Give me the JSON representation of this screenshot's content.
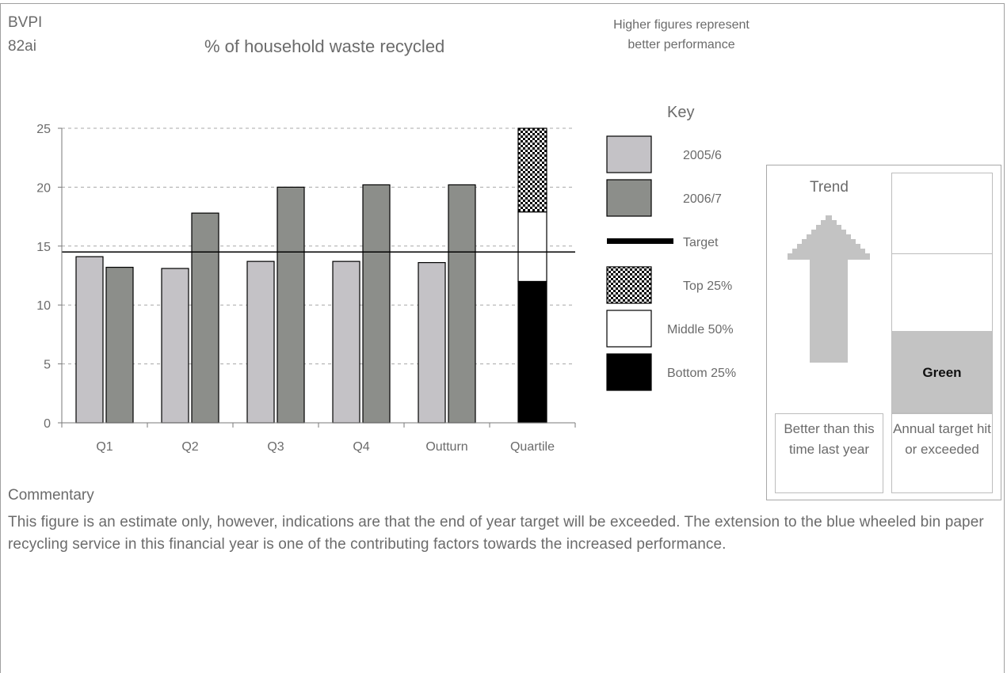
{
  "header": {
    "code_line1": "BVPI",
    "code_line2": "82ai",
    "note": "Higher figures represent better performance"
  },
  "chart_data": {
    "type": "bar",
    "title": "% of household waste recycled",
    "categories": [
      "Q1",
      "Q2",
      "Q3",
      "Q4",
      "Outturn",
      "Quartile"
    ],
    "series": [
      {
        "name": "2005/6",
        "values": [
          14.1,
          13.1,
          13.7,
          13.7,
          13.6,
          null
        ],
        "color": "#c4c2c6"
      },
      {
        "name": "2006/7",
        "values": [
          13.2,
          17.8,
          20.0,
          20.2,
          20.2,
          null
        ],
        "color": "#8c8e8a"
      }
    ],
    "target": {
      "name": "Target",
      "value": 14.5,
      "color": "#000000"
    },
    "quartile": [
      {
        "name": "Bottom 25%",
        "from": 0,
        "to": 12.0,
        "fill": "#000000"
      },
      {
        "name": "Middle 50%",
        "from": 12.0,
        "to": 17.9,
        "fill": "#ffffff"
      },
      {
        "name": "Top 25%",
        "from": 17.9,
        "to": 25.0,
        "fill": "checker"
      }
    ],
    "y_ticks": [
      0,
      5,
      10,
      15,
      20,
      25
    ],
    "ylim": [
      0,
      25
    ],
    "grid": true,
    "legend": {
      "title": "Key",
      "placement": "right",
      "items": [
        "2005/6",
        "2006/7",
        "Target",
        "Top 25%",
        "Middle 50%",
        "Bottom 25%"
      ]
    }
  },
  "trend": {
    "title": "Trend",
    "direction": "up",
    "icon": "arrow-up-icon",
    "caption": "Better than this time last year"
  },
  "annual_target": {
    "status": "Green",
    "level": 0.34,
    "color": "#c3c3c3",
    "caption": "Annual target hit or exceeded"
  },
  "commentary": {
    "heading": "Commentary",
    "text": "This figure is an estimate only, however, indications are that the end of year target will be exceeded.  The extension to the blue wheeled bin paper recycling service in this financial year is one of the contributing factors towards the increased performance."
  }
}
